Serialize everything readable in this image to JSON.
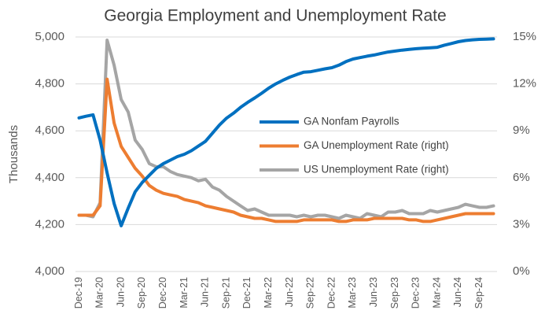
{
  "chart_data": {
    "type": "line",
    "title": "Georgia Employment and Unemployment Rate",
    "y_label": "Thousands",
    "categories": [
      "Dec-19",
      null,
      null,
      "Mar-20",
      null,
      null,
      "Jun-20",
      null,
      null,
      "Sep-20",
      null,
      null,
      "Dec-20",
      null,
      null,
      "Mar-21",
      null,
      null,
      "Jun-21",
      null,
      null,
      "Sep-21",
      null,
      null,
      "Dec-21",
      null,
      null,
      "Mar-22",
      null,
      null,
      "Jun-22",
      null,
      null,
      "Sep-22",
      null,
      null,
      "Dec-22",
      null,
      null,
      "Mar-23",
      null,
      null,
      "Jun-23",
      null,
      null,
      "Sep-23",
      null,
      null,
      "Dec-23",
      null,
      null,
      "Mar-24",
      null,
      null,
      "Jun-24",
      null,
      null,
      "Sep-24",
      null,
      null
    ],
    "series": [
      {
        "name": "GA Nonfam Payrolls",
        "color": "#0070c0",
        "axis": "y",
        "values": [
          4655,
          4662,
          4668,
          4560,
          4420,
          4290,
          4195,
          4270,
          4340,
          4380,
          4410,
          4440,
          4460,
          4475,
          4490,
          4500,
          4515,
          4535,
          4555,
          4590,
          4625,
          4654,
          4675,
          4700,
          4721,
          4740,
          4760,
          4782,
          4800,
          4815,
          4829,
          4840,
          4850,
          4852,
          4858,
          4864,
          4869,
          4880,
          4895,
          4906,
          4912,
          4918,
          4923,
          4930,
          4936,
          4940,
          4944,
          4947,
          4950,
          4952,
          4954,
          4956,
          4965,
          4972,
          4980,
          4985,
          4988,
          4990,
          4991,
          4992
        ]
      },
      {
        "name": "GA Unemployment Rate (right)",
        "color": "#ed7d31",
        "axis": "y2",
        "values": [
          3.6,
          3.6,
          3.6,
          4.2,
          12.3,
          9.5,
          8.0,
          7.3,
          6.6,
          6.1,
          5.5,
          5.2,
          5.0,
          4.9,
          4.8,
          4.6,
          4.5,
          4.4,
          4.2,
          4.1,
          4.0,
          3.9,
          3.8,
          3.6,
          3.5,
          3.4,
          3.4,
          3.3,
          3.2,
          3.2,
          3.2,
          3.2,
          3.3,
          3.3,
          3.3,
          3.3,
          3.3,
          3.2,
          3.2,
          3.3,
          3.3,
          3.3,
          3.4,
          3.4,
          3.4,
          3.4,
          3.4,
          3.3,
          3.3,
          3.2,
          3.2,
          3.3,
          3.4,
          3.5,
          3.6,
          3.7,
          3.7,
          3.7,
          3.7,
          3.7
        ]
      },
      {
        "name": "US Unemployment Rate (right)",
        "color": "#a5a5a5",
        "axis": "y2",
        "values": [
          3.6,
          3.6,
          3.5,
          4.4,
          14.8,
          13.2,
          11.0,
          10.2,
          8.4,
          7.8,
          6.9,
          6.7,
          6.7,
          6.4,
          6.2,
          6.1,
          6.0,
          5.8,
          5.9,
          5.4,
          5.2,
          4.8,
          4.5,
          4.2,
          3.9,
          4.0,
          3.8,
          3.6,
          3.6,
          3.6,
          3.6,
          3.5,
          3.6,
          3.5,
          3.6,
          3.6,
          3.5,
          3.4,
          3.6,
          3.5,
          3.4,
          3.7,
          3.6,
          3.5,
          3.8,
          3.8,
          3.9,
          3.7,
          3.7,
          3.7,
          3.9,
          3.8,
          3.9,
          4.0,
          4.1,
          4.3,
          4.2,
          4.1,
          4.1,
          4.2
        ]
      }
    ],
    "ylim": [
      4000,
      5000
    ],
    "yticks": [
      {
        "value": 4000,
        "label": "4,000"
      },
      {
        "value": 4200,
        "label": "4,200"
      },
      {
        "value": 4400,
        "label": "4,400"
      },
      {
        "value": 4600,
        "label": "4,600"
      },
      {
        "value": 4800,
        "label": "4,800"
      },
      {
        "value": 5000,
        "label": "5,000"
      }
    ],
    "y2lim": [
      0,
      15
    ],
    "y2ticks": [
      {
        "value": 0,
        "label": "0%"
      },
      {
        "value": 3,
        "label": "3%"
      },
      {
        "value": 6,
        "label": "6%"
      },
      {
        "value": 9,
        "label": "9%"
      },
      {
        "value": 12,
        "label": "12%"
      },
      {
        "value": 15,
        "label": "15%"
      }
    ],
    "grid": true,
    "legend_position": "right"
  }
}
